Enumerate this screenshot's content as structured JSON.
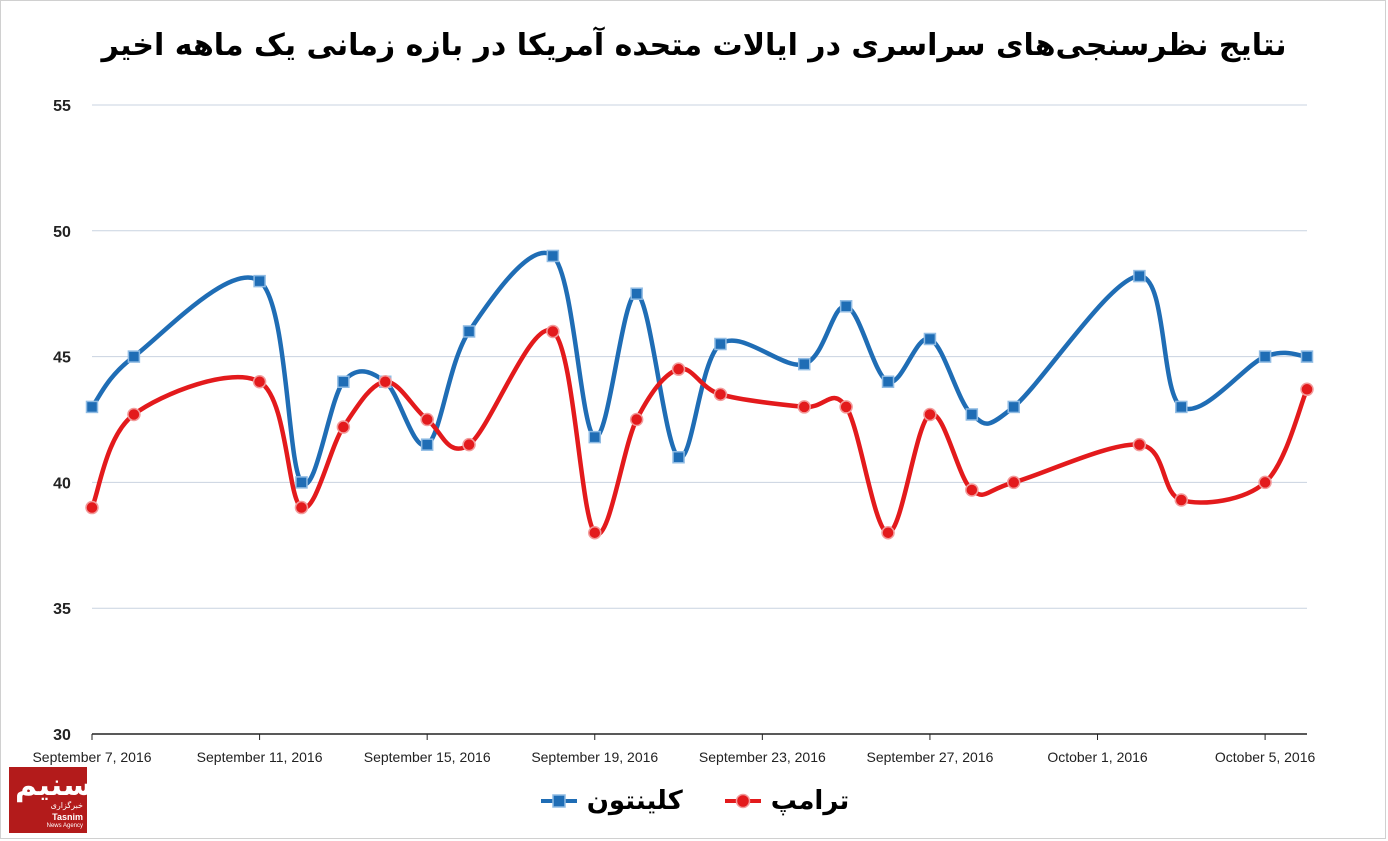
{
  "chart_data": {
    "type": "line",
    "title": "نتایج نظرسنجی‌های سراسری در ایالات متحده آمریکا در بازه زمانی یک ماهه اخیر",
    "xlabel": "",
    "ylabel": "",
    "ylim": [
      30,
      55
    ],
    "yticks": [
      30,
      35,
      40,
      45,
      50,
      55
    ],
    "xlim": [
      0,
      29
    ],
    "x_tick_labels": [
      {
        "x": 0,
        "label": "September 7, 2016"
      },
      {
        "x": 4,
        "label": "September 11, 2016"
      },
      {
        "x": 8,
        "label": "September 15, 2016"
      },
      {
        "x": 12,
        "label": "September 19, 2016"
      },
      {
        "x": 16,
        "label": "September 23, 2016"
      },
      {
        "x": 20,
        "label": "September 27, 2016"
      },
      {
        "x": 24,
        "label": "October 1, 2016"
      },
      {
        "x": 28,
        "label": "October 5, 2016"
      }
    ],
    "grid": true,
    "legend_position": "bottom",
    "series": [
      {
        "name": "کلینتون",
        "color": "#1f6db5",
        "marker": "square",
        "points": [
          [
            0,
            43
          ],
          [
            1,
            45
          ],
          [
            4,
            48
          ],
          [
            5,
            40
          ],
          [
            6,
            44
          ],
          [
            7,
            44
          ],
          [
            8,
            41.5
          ],
          [
            9,
            46
          ],
          [
            11,
            49
          ],
          [
            12,
            41.8
          ],
          [
            13,
            47.5
          ],
          [
            14,
            41
          ],
          [
            15,
            45.5
          ],
          [
            17,
            44.7
          ],
          [
            18,
            47
          ],
          [
            19,
            44
          ],
          [
            20,
            45.7
          ],
          [
            21,
            42.7
          ],
          [
            22,
            43
          ],
          [
            25,
            48.2
          ],
          [
            26,
            43
          ],
          [
            28,
            45
          ],
          [
            29,
            45
          ]
        ]
      },
      {
        "name": "ترامپ",
        "color": "#e31a1c",
        "marker": "circle",
        "points": [
          [
            0,
            39
          ],
          [
            1,
            42.7
          ],
          [
            4,
            44
          ],
          [
            5,
            39
          ],
          [
            6,
            42.2
          ],
          [
            7,
            44
          ],
          [
            8,
            42.5
          ],
          [
            9,
            41.5
          ],
          [
            11,
            46
          ],
          [
            12,
            38
          ],
          [
            13,
            42.5
          ],
          [
            14,
            44.5
          ],
          [
            15,
            43.5
          ],
          [
            17,
            43
          ],
          [
            18,
            43
          ],
          [
            19,
            38
          ],
          [
            20,
            42.7
          ],
          [
            21,
            39.7
          ],
          [
            22,
            40
          ],
          [
            25,
            41.5
          ],
          [
            26,
            39.3
          ],
          [
            28,
            40
          ],
          [
            29,
            43.7
          ]
        ]
      }
    ]
  },
  "logo": {
    "mark": "تسنیم",
    "line1": "خبرگزاری",
    "line2": "Tasnim",
    "line3": "News Agency"
  }
}
